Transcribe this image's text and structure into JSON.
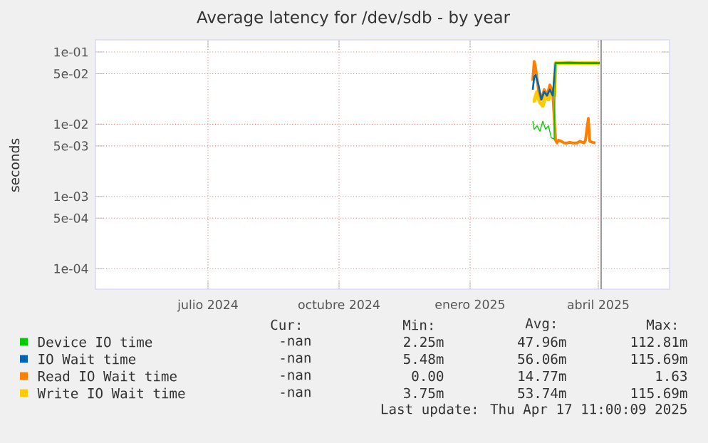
{
  "chart_data": {
    "type": "line",
    "title": "Average latency for /dev/sdb - by year",
    "ylabel": "seconds",
    "log": "y",
    "grid": true,
    "legend": "bottom",
    "xlim": [
      "2024-04-27",
      "2025-06-04"
    ],
    "ylim": [
      5.2e-05,
      0.147
    ],
    "xticks": [
      {
        "value": "2024-07-15",
        "label": "julio 2024"
      },
      {
        "value": "2024-10-15",
        "label": "octubre 2024"
      },
      {
        "value": "2025-01-15",
        "label": "enero 2025"
      },
      {
        "value": "2025-04-15",
        "label": "abril 2025"
      }
    ],
    "yticks": [
      {
        "value": 0.1,
        "label": "1e-01"
      },
      {
        "value": 0.05,
        "label": "5e-02"
      },
      {
        "value": 0.01,
        "label": "1e-02"
      },
      {
        "value": 0.005,
        "label": "5e-03"
      },
      {
        "value": 0.001,
        "label": "1e-03"
      },
      {
        "value": 0.0005,
        "label": "5e-04"
      },
      {
        "value": 0.0001,
        "label": "1e-04"
      }
    ],
    "ref_lines": [
      {
        "axis": "x",
        "value": "2025-04-17",
        "color": "#999999"
      }
    ],
    "series": [
      {
        "name": "Device IO time",
        "color": "#00cc00",
        "x": [
          "2025-02-28",
          "2025-03-01",
          "2025-03-03",
          "2025-03-05",
          "2025-03-07",
          "2025-03-09",
          "2025-03-11",
          "2025-03-13",
          "2025-03-15",
          "2025-03-16",
          "2025-03-25",
          "2025-04-05",
          "2025-04-16"
        ],
        "values": [
          0.011,
          0.0085,
          0.0095,
          0.008,
          0.011,
          0.0085,
          0.0095,
          0.0065,
          0.0062,
          0.07,
          0.071,
          0.07,
          0.07
        ]
      },
      {
        "name": "IO Wait time",
        "color": "#0066b3",
        "x": [
          "2025-02-28",
          "2025-03-01",
          "2025-03-02",
          "2025-03-04",
          "2025-03-06",
          "2025-03-08",
          "2025-03-10",
          "2025-03-12",
          "2025-03-14",
          "2025-03-16",
          "2025-03-25",
          "2025-04-05",
          "2025-04-16"
        ],
        "values": [
          0.03,
          0.045,
          0.048,
          0.035,
          0.022,
          0.028,
          0.025,
          0.03,
          0.025,
          0.07,
          0.071,
          0.07,
          0.07
        ]
      },
      {
        "name": "Read IO Wait time",
        "color": "#ff8000",
        "x": [
          "2025-02-28",
          "2025-03-01",
          "2025-03-02",
          "2025-03-04",
          "2025-03-06",
          "2025-03-08",
          "2025-03-10",
          "2025-03-12",
          "2025-03-14",
          "2025-03-16",
          "2025-03-17",
          "2025-03-18",
          "2025-03-20",
          "2025-03-22",
          "2025-03-24",
          "2025-03-26",
          "2025-03-28",
          "2025-03-31",
          "2025-04-02",
          "2025-04-05",
          "2025-04-06",
          "2025-04-08",
          "2025-04-09",
          "2025-04-11",
          "2025-04-13"
        ],
        "values": [
          0.04,
          0.074,
          0.06,
          0.03,
          0.022,
          0.03,
          0.025,
          0.035,
          0.028,
          0.006,
          0.0055,
          0.006,
          0.0058,
          0.0055,
          0.0055,
          0.0056,
          0.0055,
          0.0055,
          0.0058,
          0.0055,
          0.006,
          0.012,
          0.0058,
          0.0056,
          0.0055
        ]
      },
      {
        "name": "Write IO Wait time",
        "color": "#ffcc00",
        "x": [
          "2025-02-28",
          "2025-03-01",
          "2025-03-03",
          "2025-03-05",
          "2025-03-07",
          "2025-03-09",
          "2025-03-11",
          "2025-03-13",
          "2025-03-15",
          "2025-03-16",
          "2025-03-25",
          "2025-04-05",
          "2025-04-16"
        ],
        "values": [
          0.021,
          0.021,
          0.028,
          0.02,
          0.018,
          0.025,
          0.022,
          0.03,
          0.025,
          0.07,
          0.071,
          0.07,
          0.07
        ]
      }
    ],
    "annotations": [
      "Cur:",
      "Min:",
      "Avg:",
      "Max:",
      "-nan",
      "2.25m",
      "47.96m",
      "112.81m",
      "-nan",
      "5.48m",
      "56.06m",
      "115.69m",
      "-nan",
      "0.00",
      "14.77m",
      "1.63",
      "-nan",
      "3.75m",
      "53.74m",
      "115.69m",
      "Last update: Thu Apr 17 11:00:09 2025"
    ]
  }
}
